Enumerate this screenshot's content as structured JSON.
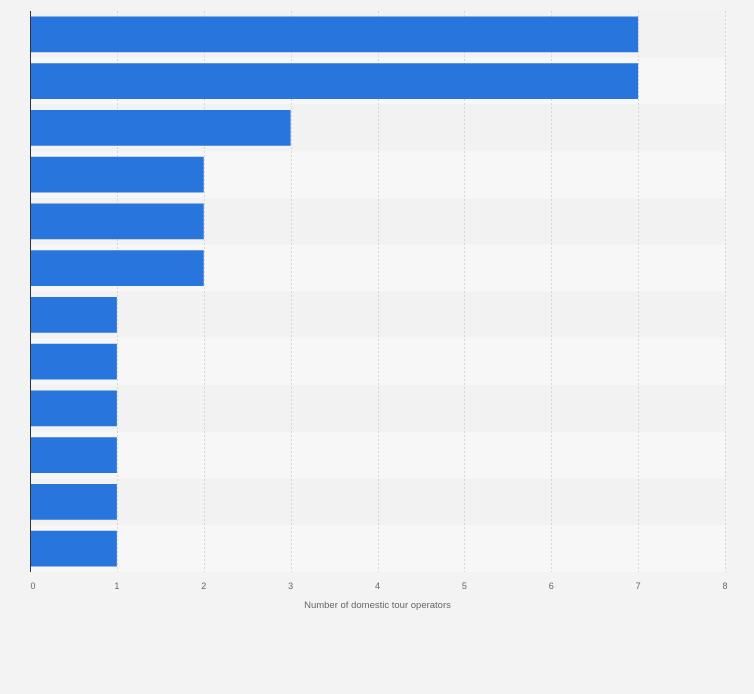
{
  "chart_data": {
    "type": "bar",
    "orientation": "horizontal",
    "categories": [
      "",
      "",
      "",
      "",
      "",
      "",
      "",
      "",
      "",
      "",
      "",
      ""
    ],
    "values": [
      7,
      7,
      3,
      2,
      2,
      2,
      1,
      1,
      1,
      1,
      1,
      1
    ],
    "xlabel": "Number of domestic tour operators",
    "ylabel": "",
    "xlim": [
      0,
      8
    ],
    "x_ticks": [
      "0",
      "1",
      "2",
      "3",
      "4",
      "5",
      "6",
      "7",
      "8"
    ],
    "grid": "vertical dashed",
    "legend": "none",
    "colors": {
      "bar": "#2876dd",
      "band_dark": "#f2f2f2",
      "band_light": "#f7f7f7",
      "page_background": "#f3f3f3",
      "gridline": "#d6d6d6",
      "axis_line": "#333333",
      "tick_text": "#666666"
    }
  }
}
